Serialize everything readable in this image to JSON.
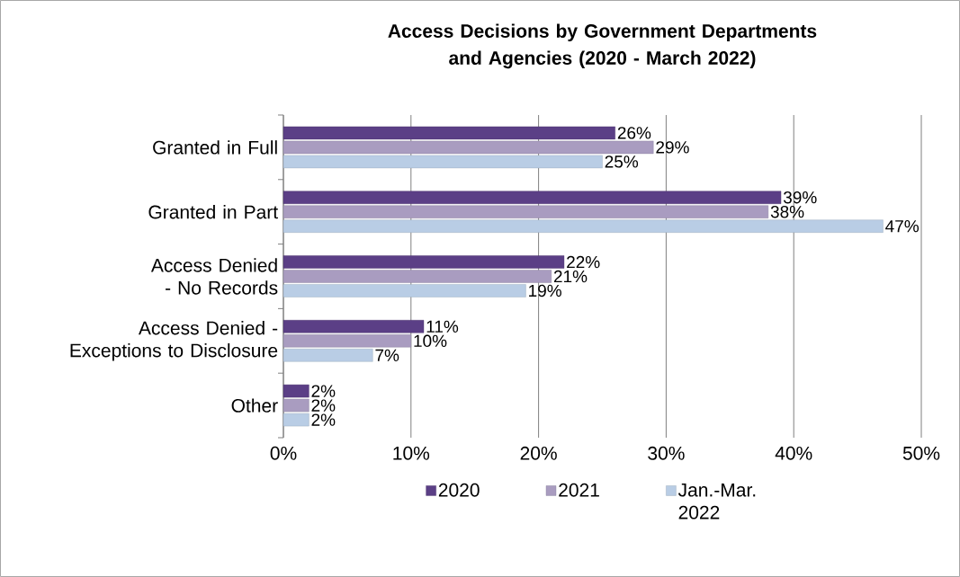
{
  "chart_data": {
    "type": "bar",
    "orientation": "horizontal",
    "title": "Access Decisions by Government Departments and Agencies (2020 - March 2022)",
    "categories": [
      "Granted in Full",
      "Granted in Part",
      "Access Denied - No Records",
      "Access Denied - Exceptions to Disclosure",
      "Other"
    ],
    "series": [
      {
        "name": "2020",
        "color": "#5b3f86",
        "values": [
          26,
          39,
          22,
          11,
          2
        ],
        "value_labels": [
          "26%",
          "39%",
          "22%",
          "11%",
          "2%"
        ]
      },
      {
        "name": "2021",
        "color": "#a99cc0",
        "values": [
          29,
          38,
          21,
          10,
          2
        ],
        "value_labels": [
          "29%",
          "38%",
          "21%",
          "10%",
          "2%"
        ]
      },
      {
        "name": "Jan.-Mar. 2022",
        "color": "#b9cde5",
        "values": [
          25,
          47,
          19,
          7,
          2
        ],
        "value_labels": [
          "25%",
          "47%",
          "19%",
          "7%",
          "2%"
        ]
      }
    ],
    "xlim": [
      0,
      50
    ],
    "xticks": [
      {
        "value": 0,
        "label": "0%"
      },
      {
        "value": 10,
        "label": "10%"
      },
      {
        "value": 20,
        "label": "20%"
      },
      {
        "value": 30,
        "label": "30%"
      },
      {
        "value": 40,
        "label": "40%"
      },
      {
        "value": 50,
        "label": "50%"
      }
    ],
    "grid": "x",
    "legend": "bottom"
  }
}
